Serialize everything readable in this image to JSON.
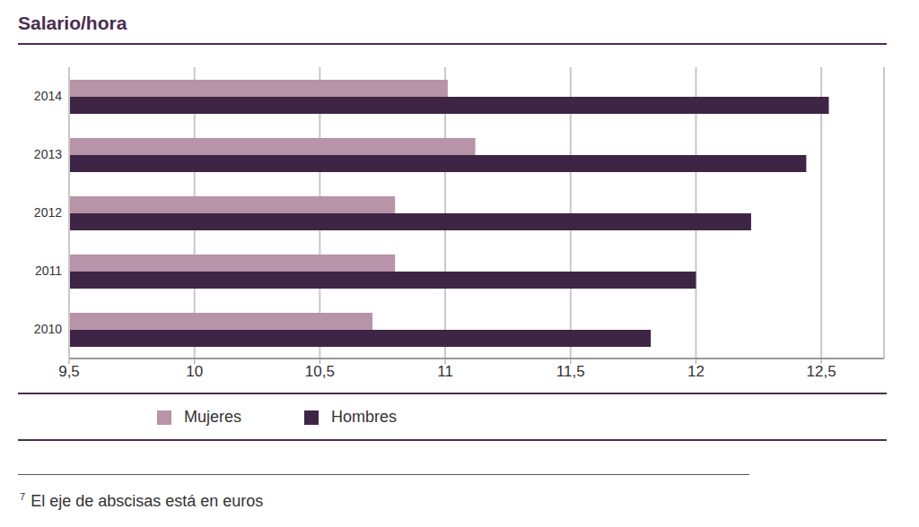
{
  "chart_data": {
    "type": "bar",
    "title": "Salario/hora",
    "orientation": "horizontal",
    "categories": [
      "2014",
      "2013",
      "2012",
      "2011",
      "2010"
    ],
    "series": [
      {
        "name": "Mujeres",
        "color": "#b794a8",
        "values": [
          11.01,
          11.12,
          10.8,
          10.8,
          10.71
        ]
      },
      {
        "name": "Hombres",
        "color": "#3e2546",
        "values": [
          12.53,
          12.44,
          12.22,
          12.0,
          11.82
        ]
      }
    ],
    "xlim": [
      9.5,
      12.75
    ],
    "xticks": [
      {
        "value": 9.5,
        "label": "9,5"
      },
      10,
      {
        "value": 10.5,
        "label": "10,5"
      },
      11,
      {
        "value": 11.5,
        "label": "11,5"
      },
      12,
      {
        "value": 12.5,
        "label": "12,5"
      }
    ],
    "grid": true,
    "legend": "bottom",
    "annotation_mark": "7",
    "annotation": "El eje de abscisas está en euros"
  }
}
